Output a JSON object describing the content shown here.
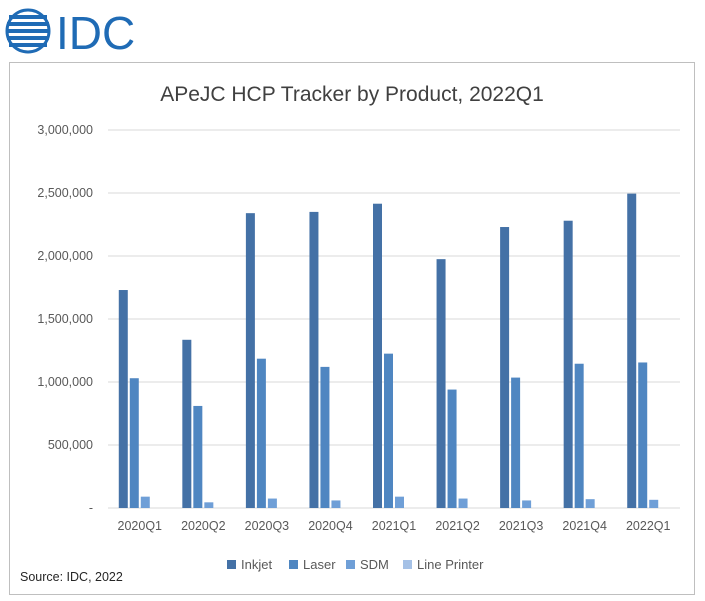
{
  "logo": {
    "text": "IDC"
  },
  "source": "Source: IDC, 2022",
  "colors": {
    "Inkjet": "#4471a6",
    "Laser": "#4f86c1",
    "SDM": "#6f9fd7",
    "Line Printer": "#a5c1e6",
    "grid": "#d9d9d9",
    "logo": "#1f6bb5"
  },
  "chart_data": {
    "type": "bar",
    "title": "APeJC HCP Tracker by Product, 2022Q1",
    "categories": [
      "2020Q1",
      "2020Q2",
      "2020Q3",
      "2020Q4",
      "2021Q1",
      "2021Q2",
      "2021Q3",
      "2021Q4",
      "2022Q1"
    ],
    "series": [
      {
        "name": "Inkjet",
        "values": [
          1730000,
          1335000,
          2340000,
          2350000,
          2415000,
          1975000,
          2230000,
          2280000,
          2495000
        ]
      },
      {
        "name": "Laser",
        "values": [
          1030000,
          810000,
          1185000,
          1120000,
          1225000,
          940000,
          1035000,
          1145000,
          1155000
        ]
      },
      {
        "name": "SDM",
        "values": [
          90000,
          45000,
          75000,
          60000,
          90000,
          75000,
          60000,
          70000,
          65000
        ]
      },
      {
        "name": "Line Printer",
        "values": [
          0,
          0,
          0,
          0,
          0,
          0,
          0,
          0,
          0
        ]
      }
    ],
    "ylim": [
      0,
      3000000
    ],
    "yticks": [
      0,
      500000,
      1000000,
      1500000,
      2000000,
      2500000,
      3000000
    ],
    "ytick_labels": [
      "-",
      "500,000",
      "1,000,000",
      "1,500,000",
      "2,000,000",
      "2,500,000",
      "3,000,000"
    ],
    "grid": true,
    "legend": "bottom"
  }
}
